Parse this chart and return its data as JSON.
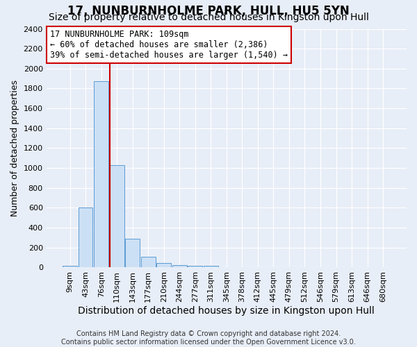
{
  "title": "17, NUNBURNHOLME PARK, HULL, HU5 5YN",
  "subtitle": "Size of property relative to detached houses in Kingston upon Hull",
  "xlabel": "Distribution of detached houses by size in Kingston upon Hull",
  "ylabel": "Number of detached properties",
  "footnote": "Contains HM Land Registry data © Crown copyright and database right 2024.\nContains public sector information licensed under the Open Government Licence v3.0.",
  "bar_labels": [
    "9sqm",
    "43sqm",
    "76sqm",
    "110sqm",
    "143sqm",
    "177sqm",
    "210sqm",
    "244sqm",
    "277sqm",
    "311sqm",
    "345sqm",
    "378sqm",
    "412sqm",
    "445sqm",
    "479sqm",
    "512sqm",
    "546sqm",
    "579sqm",
    "613sqm",
    "646sqm",
    "680sqm"
  ],
  "bar_values": [
    20,
    600,
    1870,
    1030,
    290,
    105,
    45,
    25,
    20,
    20,
    5,
    5,
    5,
    5,
    5,
    5,
    5,
    5,
    5,
    5,
    5
  ],
  "bar_color": "#cce0f5",
  "bar_edgecolor": "#5b9bd5",
  "ylim": [
    0,
    2400
  ],
  "yticks": [
    0,
    200,
    400,
    600,
    800,
    1000,
    1200,
    1400,
    1600,
    1800,
    2000,
    2200,
    2400
  ],
  "vline_index": 3,
  "vline_color": "#cc0000",
  "annotation_text": "17 NUNBURNHOLME PARK: 109sqm\n← 60% of detached houses are smaller (2,386)\n39% of semi-detached houses are larger (1,540) →",
  "annotation_box_facecolor": "#ffffff",
  "annotation_box_edgecolor": "#cc0000",
  "bg_color": "#e8eef7",
  "grid_color": "#ffffff",
  "title_fontsize": 12,
  "subtitle_fontsize": 10,
  "xlabel_fontsize": 10,
  "ylabel_fontsize": 9,
  "tick_fontsize": 8,
  "annotation_fontsize": 8.5,
  "footnote_fontsize": 7
}
